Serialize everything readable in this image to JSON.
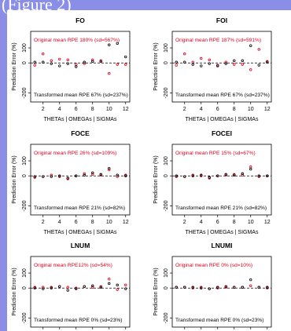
{
  "slide": {
    "title": "(Figure 2)"
  },
  "figure": {
    "x_ticks": [
      "2",
      "4",
      "6",
      "8",
      "10",
      "12"
    ],
    "y_ticks": [
      "-200",
      "0",
      "100"
    ],
    "colors": {
      "original": "#e8001c",
      "transformed": "#000000",
      "text_red": "#e8001c"
    }
  },
  "chart_data": [
    {
      "type": "scatter",
      "title": "FO",
      "xlabel": "THETAs | OMEGAs | SIGMAs",
      "ylabel": "Prediction Error (%)",
      "xlim": [
        0.5,
        12.5
      ],
      "ylim": [
        -260,
        210
      ],
      "annotations": {
        "original": "Original mean RPE 180% (sd=567%)",
        "transformed": "Transformed mean RPE 67% (sd=237%)"
      },
      "series": [
        {
          "x": [
            1,
            2,
            3,
            4,
            5,
            6,
            7,
            8,
            9,
            10,
            11,
            12
          ],
          "values": [
            -15,
            60,
            15,
            25,
            20,
            -10,
            -5,
            20,
            15,
            -70,
            -10,
            -10
          ]
        },
        {
          "x": [
            1,
            2,
            3,
            4,
            5,
            6,
            7,
            8,
            9,
            10,
            11,
            12
          ],
          "values": [
            5,
            5,
            -5,
            -20,
            -5,
            -25,
            5,
            10,
            10,
            120,
            130,
            40
          ]
        }
      ]
    },
    {
      "type": "scatter",
      "title": "FOI",
      "xlabel": "THETAs | OMEGAs | SIGMAs",
      "ylabel": "Prediction Error (%)",
      "xlim": [
        0.5,
        12.5
      ],
      "ylim": [
        -260,
        210
      ],
      "annotations": {
        "original": "Original mean RPE 187% (sd=591%)",
        "transformed": "Transformed mean RPE 67% (sd=237%)"
      },
      "series": [
        {
          "x": [
            1,
            2,
            3,
            4,
            5,
            6,
            7,
            8,
            9,
            10,
            11,
            12
          ],
          "values": [
            -15,
            60,
            5,
            30,
            20,
            -15,
            5,
            -10,
            -10,
            -45,
            90,
            10
          ]
        },
        {
          "x": [
            1,
            2,
            3,
            4,
            5,
            6,
            7,
            8,
            9,
            10,
            11,
            12
          ],
          "values": [
            5,
            5,
            -10,
            -20,
            -5,
            -20,
            -5,
            15,
            15,
            115,
            -15,
            5
          ]
        }
      ]
    },
    {
      "type": "scatter",
      "title": "FOCE",
      "xlabel": "THETAs | OMEGAs | SIGMAs",
      "ylabel": "Prediction Error (%)",
      "xlim": [
        0.5,
        12.5
      ],
      "ylim": [
        -260,
        210
      ],
      "annotations": {
        "original": "Original mean RPE 26% (sd=109%)",
        "transformed": "Transformed mean RPE 21% (sd=82%)"
      },
      "series": [
        {
          "x": [
            1,
            2,
            3,
            4,
            5,
            6,
            7,
            8,
            9,
            10,
            11,
            12
          ],
          "values": [
            -10,
            -5,
            5,
            -5,
            -20,
            0,
            15,
            10,
            5,
            40,
            -5,
            5
          ]
        },
        {
          "x": [
            1,
            2,
            3,
            4,
            5,
            6,
            7,
            8,
            9,
            10,
            11,
            12
          ],
          "values": [
            -5,
            -5,
            -5,
            0,
            -15,
            0,
            5,
            20,
            10,
            50,
            5,
            0
          ]
        }
      ]
    },
    {
      "type": "scatter",
      "title": "FOCEI",
      "xlabel": "THETAs | OMEGAs | SIGMAs",
      "ylabel": "Prediction Error (%)",
      "xlim": [
        0.5,
        12.5
      ],
      "ylim": [
        -260,
        210
      ],
      "annotations": {
        "original": "Original mean RPE 15% (sd=67%)",
        "transformed": "Transformed mean RPE 21% (sd=82%)"
      },
      "series": [
        {
          "x": [
            1,
            2,
            3,
            4,
            5,
            6,
            7,
            8,
            9,
            10,
            11,
            12
          ],
          "values": [
            -5,
            -5,
            5,
            0,
            -15,
            0,
            5,
            10,
            5,
            60,
            -5,
            0
          ]
        },
        {
          "x": [
            1,
            2,
            3,
            4,
            5,
            6,
            7,
            8,
            9,
            10,
            11,
            12
          ],
          "values": [
            0,
            -5,
            0,
            5,
            -10,
            0,
            10,
            5,
            15,
            45,
            0,
            0
          ]
        }
      ]
    },
    {
      "type": "scatter",
      "title": "LNUM",
      "xlabel": "THETAs | OMEGAs | SIGMAs",
      "ylabel": "Prediction Error (%)",
      "xlim": [
        0.5,
        12.5
      ],
      "ylim": [
        -260,
        210
      ],
      "annotations": {
        "original": "Original mean RPE12% (sd=54%)",
        "transformed": "Transformed mean RPE 0% (sd=23%)"
      },
      "series": [
        {
          "x": [
            1,
            2,
            3,
            4,
            5,
            6,
            7,
            8,
            9,
            10,
            11,
            12
          ],
          "values": [
            5,
            5,
            5,
            10,
            5,
            0,
            10,
            5,
            10,
            60,
            -10,
            20
          ]
        },
        {
          "x": [
            1,
            2,
            3,
            4,
            5,
            6,
            7,
            8,
            9,
            10,
            11,
            12
          ],
          "values": [
            0,
            -5,
            0,
            10,
            -15,
            -5,
            10,
            15,
            5,
            30,
            20,
            -5
          ]
        }
      ]
    },
    {
      "type": "scatter",
      "title": "LNUMI",
      "xlabel": "THETAs | OMEGAs | SIGMAs",
      "ylabel": "Prediction Error (%)",
      "xlim": [
        0.5,
        12.5
      ],
      "ylim": [
        -260,
        210
      ],
      "annotations": {
        "original": "Original mean RPE 0% (sd=10%)",
        "transformed": "Transformed mean RPE 0% (sd=23%)"
      },
      "series": [
        {
          "x": [
            1,
            2,
            3,
            4,
            5,
            6,
            7,
            8,
            9,
            10,
            11,
            12
          ],
          "values": [
            5,
            5,
            0,
            5,
            -5,
            0,
            5,
            5,
            5,
            15,
            5,
            0
          ]
        },
        {
          "x": [
            1,
            2,
            3,
            4,
            5,
            6,
            7,
            8,
            9,
            10,
            11,
            12
          ],
          "values": [
            5,
            5,
            5,
            0,
            -5,
            5,
            10,
            5,
            5,
            55,
            5,
            5
          ]
        }
      ]
    }
  ]
}
